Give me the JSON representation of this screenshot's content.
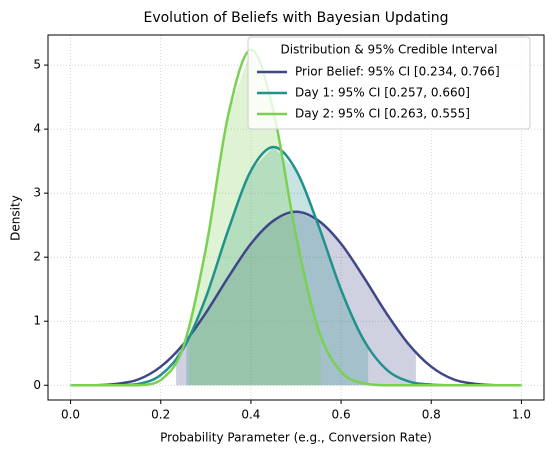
{
  "chart_data": {
    "type": "line",
    "title": "Evolution of Beliefs with Bayesian Updating",
    "x_label": "Probability Parameter (e.g., Conversion Rate)",
    "y_label": "Density",
    "legend_title": "Distribution & 95% Credible Interval",
    "legend_position": "upper right",
    "grid": true,
    "x": [
      0,
      0.05,
      0.1,
      0.15,
      0.2,
      0.25,
      0.3,
      0.35,
      0.4,
      0.45,
      0.5,
      0.55,
      0.6,
      0.65,
      0.7,
      0.75,
      0.8,
      0.85,
      0.9,
      0.95,
      1
    ],
    "series": [
      {
        "name": "Prior Belief: 95% CI [0.234, 0.766]",
        "color": "#3f4788",
        "ci": [
          0.234,
          0.766
        ],
        "values": [
          0,
          0,
          0.02,
          0.09,
          0.29,
          0.64,
          1.13,
          1.69,
          2.21,
          2.57,
          2.71,
          2.57,
          2.21,
          1.69,
          1.13,
          0.64,
          0.29,
          0.09,
          0.02,
          0,
          0
        ]
      },
      {
        "name": "Day 1: 95% CI [0.257, 0.660]",
        "color": "#21918c",
        "ci": [
          0.257,
          0.66
        ],
        "values": [
          0,
          0,
          0,
          0.02,
          0.16,
          0.57,
          1.37,
          2.43,
          3.35,
          3.72,
          3.36,
          2.49,
          1.49,
          0.71,
          0.25,
          0.06,
          0.01,
          0,
          0,
          0,
          0
        ]
      },
      {
        "name": "Day 2: 95% CI [0.263, 0.555]",
        "color": "#7ad151",
        "ci": [
          0.263,
          0.555
        ],
        "values": [
          0,
          0,
          0,
          0,
          0.08,
          0.6,
          2.13,
          4.23,
          5.24,
          4.28,
          2.34,
          0.86,
          0.21,
          0.03,
          0,
          0,
          0,
          0,
          0,
          0,
          0
        ]
      }
    ],
    "xlim": [
      -0.05,
      1.05
    ],
    "xticks": [
      {
        "value": 0,
        "label": "0.0"
      },
      {
        "value": 0.2,
        "label": "0.2"
      },
      {
        "value": 0.4,
        "label": "0.4"
      },
      {
        "value": 0.6,
        "label": "0.6"
      },
      {
        "value": 0.8,
        "label": "0.8"
      },
      {
        "value": 1,
        "label": "1.0"
      }
    ],
    "ylim": [
      -0.23,
      5.47
    ],
    "yticks": [
      0,
      1,
      2,
      3,
      4,
      5
    ]
  }
}
